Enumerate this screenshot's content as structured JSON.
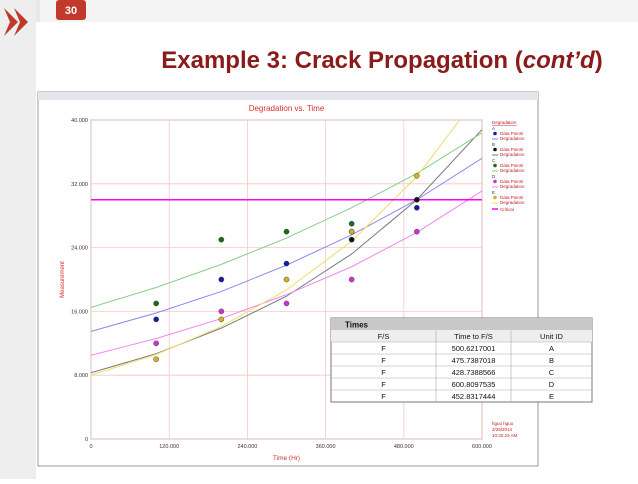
{
  "slide_number": "30",
  "slide_title": [
    "Example 3: Crack Propagation (",
    "cont’d",
    ")"
  ],
  "chart_data": {
    "type": "scatter",
    "title": "Degradation vs. Time",
    "x_label": "Time (Hr)",
    "y_label": "Measurement",
    "xlim": [
      0,
      600
    ],
    "xticks": [
      0,
      {
        "value": 120,
        "label": "120.000"
      },
      {
        "value": 240,
        "label": "240.000"
      },
      {
        "value": 360,
        "label": "360.000"
      },
      {
        "value": 480,
        "label": "480.000"
      },
      {
        "value": 600,
        "label": "600.000"
      }
    ],
    "ylim": [
      0,
      40
    ],
    "yticks": [
      0,
      {
        "value": 8,
        "label": "8.000"
      },
      {
        "value": 16,
        "label": "16.000"
      },
      {
        "value": 24,
        "label": "24.000"
      },
      {
        "value": 32,
        "label": "32.000"
      },
      {
        "value": 40,
        "label": "40.000"
      }
    ],
    "grid": true,
    "legend_title": "Degradation",
    "point_label": "Data Points",
    "curve_label": "Degradation",
    "curve_x": [
      0,
      100,
      200,
      300,
      400,
      500,
      600
    ],
    "series": [
      {
        "name": "A",
        "color": "#1a1aa8",
        "curve_color": "#8888ee",
        "x": [
          100,
          200,
          300,
          400,
          500
        ],
        "values": [
          15,
          20,
          22,
          26,
          29
        ],
        "curve": [
          13.5,
          15.8,
          18.5,
          21.8,
          25.6,
          30.0,
          35.2
        ]
      },
      {
        "name": "B",
        "color": "#111111",
        "curve_color": "#777777",
        "x": [
          400,
          500
        ],
        "values": [
          25,
          30
        ],
        "curve": [
          8.3,
          10.7,
          13.9,
          17.9,
          23.2,
          30.0,
          38.8
        ]
      },
      {
        "name": "C",
        "color": "#1a6a1a",
        "curve_color": "#88cc88",
        "x": [
          100,
          200,
          300,
          400
        ],
        "values": [
          17,
          25,
          26,
          27
        ],
        "curve": [
          16.5,
          19.0,
          21.9,
          25.2,
          29.0,
          33.3,
          38.4
        ]
      },
      {
        "name": "D",
        "color": "#cc33cc",
        "curve_color": "#ee88ee",
        "x": [
          100,
          200,
          300,
          400,
          500
        ],
        "values": [
          12,
          16,
          17,
          20,
          26
        ],
        "curve": [
          10.5,
          12.6,
          15.1,
          18.1,
          21.6,
          25.9,
          31.1
        ]
      },
      {
        "name": "E",
        "color": "#d4b020",
        "curve_color": "#eedd66",
        "x": [
          100,
          200,
          300,
          400,
          500
        ],
        "values": [
          10,
          15,
          20,
          26,
          33
        ],
        "curve": [
          8,
          10.6,
          14.1,
          18.7,
          24.8,
          32.9,
          43.7
        ]
      }
    ],
    "critical": {
      "name": "Critical",
      "value": 30,
      "color": "#ff00ff"
    },
    "footer": [
      "hguo hguo",
      "3/25/2014",
      "10:32:23 AM"
    ]
  },
  "table": {
    "title": "Times",
    "header": [
      "F/S",
      "Time to F/S",
      "Unit ID"
    ],
    "rows": [
      [
        "F",
        "500.6217001",
        "A"
      ],
      [
        "F",
        "475.7387018",
        "B"
      ],
      [
        "F",
        "428.7388566",
        "C"
      ],
      [
        "F",
        "600.8097535",
        "D"
      ],
      [
        "F",
        "452.8317444",
        "E"
      ]
    ]
  }
}
